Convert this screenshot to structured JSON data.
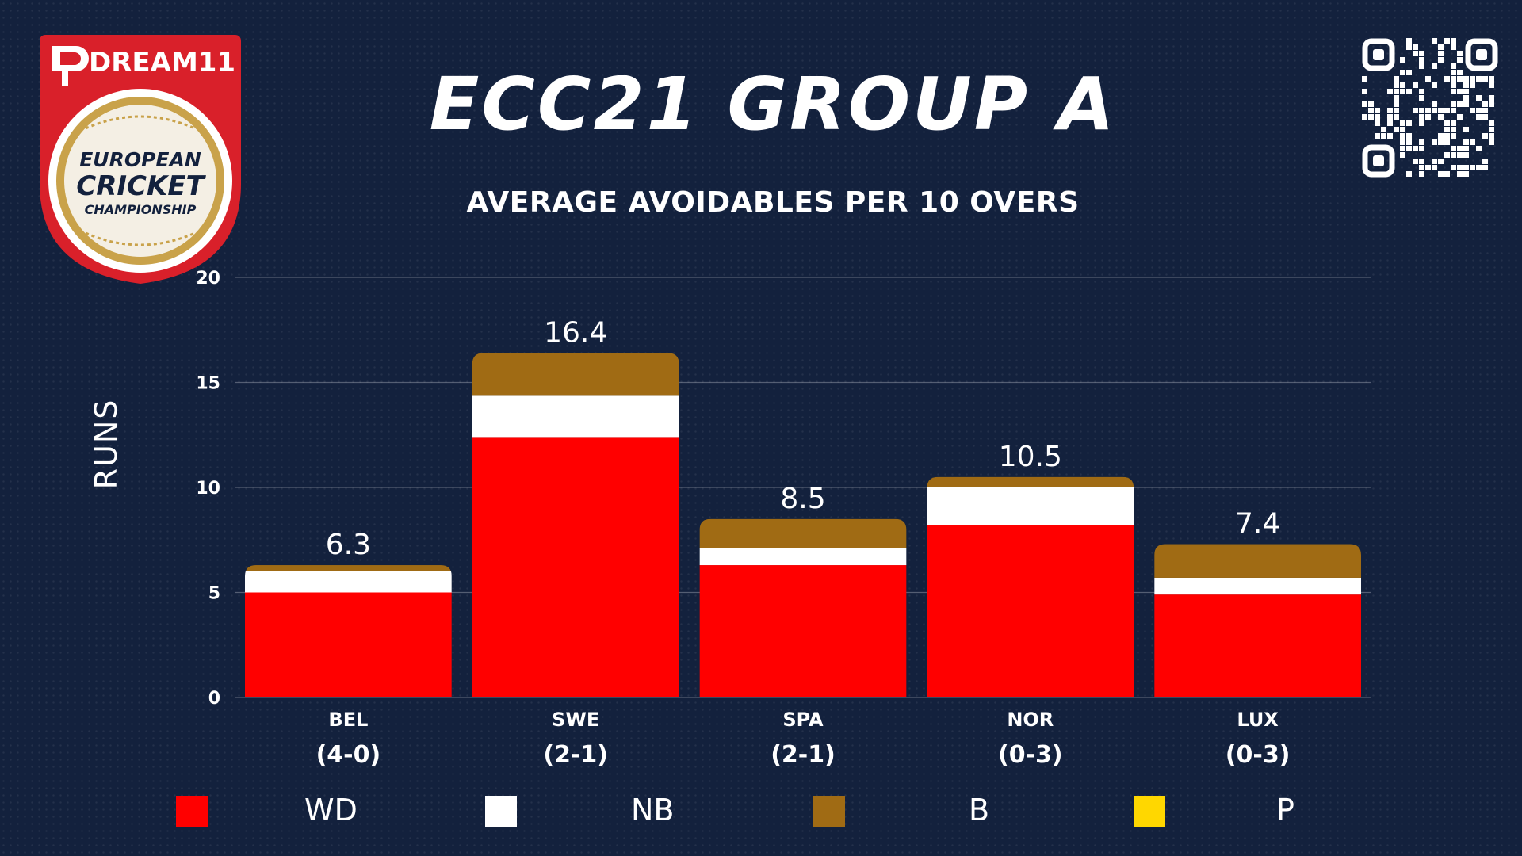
{
  "logo": {
    "brand": "DREAM11",
    "line1": "EUROPEAN",
    "line2": "CRICKET",
    "line3": "CHAMPIONSHIP"
  },
  "title": "ECC21 GROUP A",
  "colors": {
    "background": "#13213d",
    "WD": "#ff0000",
    "NB": "#ffffff",
    "B": "#a06b14",
    "P": "#ffd700",
    "logo_red": "#d9202a",
    "logo_gold": "#c9a24a"
  },
  "chart_data": {
    "type": "bar",
    "stacked": true,
    "title": "AVERAGE AVOIDABLES PER 10 OVERS",
    "ylabel": "RUNS",
    "xlabel": "",
    "ylim": [
      0,
      20
    ],
    "yticks": [
      0,
      5,
      10,
      15,
      20
    ],
    "grid": true,
    "legend_position": "bottom",
    "categories": [
      "BEL",
      "SWE",
      "SPA",
      "NOR",
      "LUX"
    ],
    "records": [
      "(4-0)",
      "(2-1)",
      "(2-1)",
      "(0-3)",
      "(0-3)"
    ],
    "totals": [
      "6.3",
      "16.4",
      "8.5",
      "10.5",
      "7.4"
    ],
    "series": [
      {
        "name": "WD",
        "values": [
          5.0,
          12.4,
          6.3,
          8.2,
          4.9
        ]
      },
      {
        "name": "NB",
        "values": [
          1.0,
          2.0,
          0.8,
          1.8,
          0.8
        ]
      },
      {
        "name": "B",
        "values": [
          0.3,
          2.0,
          1.4,
          0.5,
          1.6
        ]
      },
      {
        "name": "P",
        "values": [
          0,
          0,
          0,
          0,
          0
        ]
      }
    ]
  }
}
